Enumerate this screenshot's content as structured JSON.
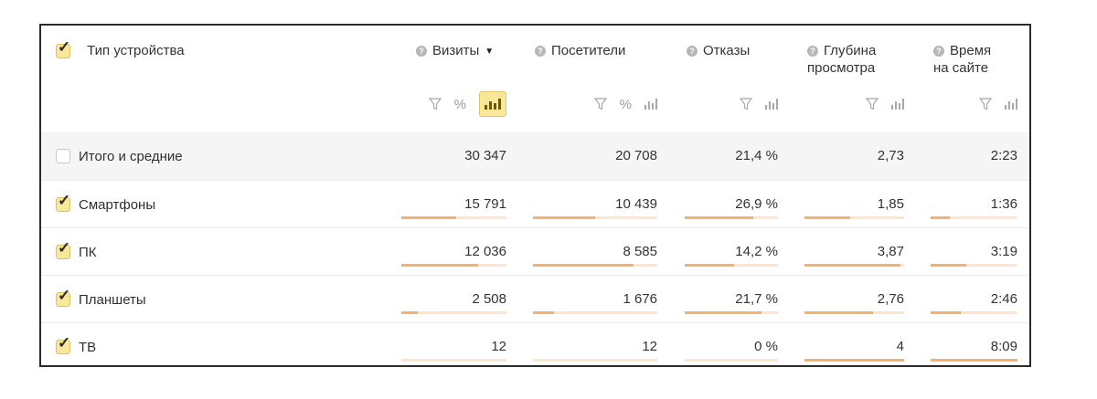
{
  "header": {
    "dimension_label": "Тип устройства",
    "metrics": [
      {
        "line1": "Визиты",
        "line2": "",
        "sorted": true,
        "sort_arrow": "▼"
      },
      {
        "line1": "Посетители",
        "line2": ""
      },
      {
        "line1": "Отказы",
        "line2": ""
      },
      {
        "line1": "Глубина",
        "line2": "просмотра"
      },
      {
        "line1": "Время",
        "line2": "на сайте"
      }
    ],
    "controls": {
      "percent_label": "%"
    },
    "help_glyph": "?"
  },
  "icons": {
    "check": "checkmark-icon",
    "help": "question-circle-icon",
    "filter": "funnel-icon",
    "bars": "bar-chart-icon"
  },
  "colors": {
    "accent_yellow": "#fbe79a",
    "bar_fill": "#f7b16f",
    "bar_track": "#fde6cc",
    "total_bg": "#f5f5f5"
  },
  "rows": [
    {
      "label": "Итого и средние",
      "checked": false,
      "total": true,
      "values": [
        "30 347",
        "20 708",
        "21,4 %",
        "2,73",
        "2:23"
      ],
      "fractions": [
        null,
        null,
        null,
        null,
        null
      ]
    },
    {
      "label": "Смартфоны",
      "checked": true,
      "total": false,
      "values": [
        "15 791",
        "10 439",
        "26,9 %",
        "1,85",
        "1:36"
      ],
      "fractions": [
        0.52,
        0.5,
        0.74,
        0.46,
        0.22
      ]
    },
    {
      "label": "ПК",
      "checked": true,
      "total": false,
      "values": [
        "12 036",
        "8 585",
        "14,2 %",
        "3,87",
        "3:19"
      ],
      "fractions": [
        0.73,
        0.81,
        0.53,
        0.96,
        0.41
      ]
    },
    {
      "label": "Планшеты",
      "checked": true,
      "total": false,
      "values": [
        "2 508",
        "1 676",
        "21,7 %",
        "2,76",
        "2:46"
      ],
      "fractions": [
        0.16,
        0.17,
        0.82,
        0.69,
        0.35
      ]
    },
    {
      "label": "ТВ",
      "checked": true,
      "total": false,
      "values": [
        "12",
        "12",
        "0 %",
        "4",
        "8:09"
      ],
      "fractions": [
        0.0,
        0.0,
        0.0,
        1.0,
        1.0
      ]
    }
  ]
}
